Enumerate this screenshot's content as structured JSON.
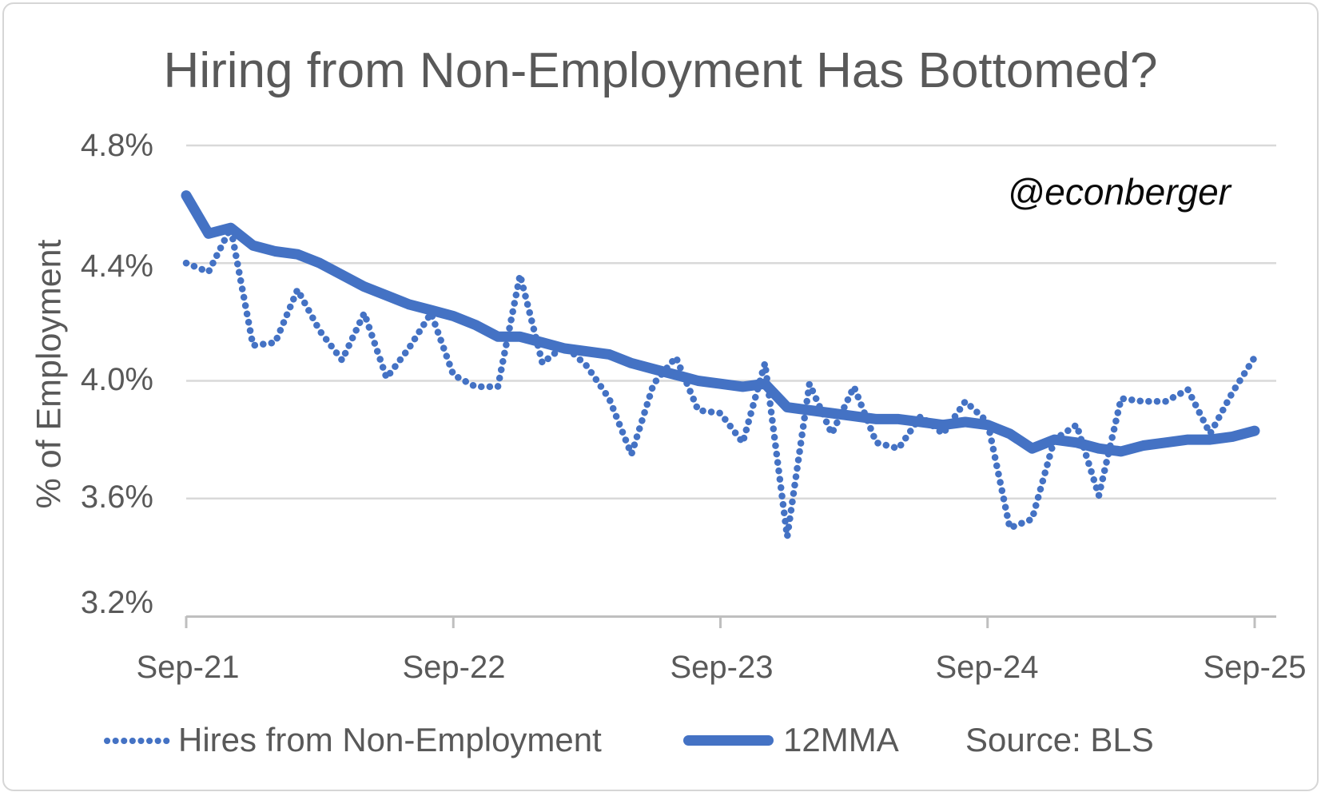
{
  "watermark": "@econberger",
  "source_note": "Source: BLS",
  "chart_data": {
    "type": "line",
    "title": "Hiring from Non-Employment Has Bottomed?",
    "xlabel": "",
    "ylabel": "% of Employment",
    "ylim": [
      3.2,
      4.8
    ],
    "grid": "horizontal",
    "legend_position": "bottom",
    "y_tick_values": [
      4.8,
      4.4,
      4.0,
      3.6,
      3.2
    ],
    "y_tick_labels": [
      "4.8%",
      "4.4%",
      "4.0%",
      "3.6%",
      "3.2%"
    ],
    "x_tick_month_indices": [
      0,
      12,
      24,
      36,
      48
    ],
    "x_tick_labels": [
      "Sep-21",
      "Sep-22",
      "Sep-23",
      "Sep-24",
      "Sep-25"
    ],
    "categories": [
      "Sep-21",
      "Oct-21",
      "Nov-21",
      "Dec-21",
      "Jan-22",
      "Feb-22",
      "Mar-22",
      "Apr-22",
      "May-22",
      "Jun-22",
      "Jul-22",
      "Aug-22",
      "Sep-22",
      "Oct-22",
      "Nov-22",
      "Dec-22",
      "Jan-23",
      "Feb-23",
      "Mar-23",
      "Apr-23",
      "May-23",
      "Jun-23",
      "Jul-23",
      "Aug-23",
      "Sep-23",
      "Oct-23",
      "Nov-23",
      "Dec-23",
      "Jan-24",
      "Feb-24",
      "Mar-24",
      "Apr-24",
      "May-24",
      "Jun-24",
      "Jul-24",
      "Aug-24",
      "Sep-24",
      "Oct-24",
      "Nov-24",
      "Dec-24",
      "Jan-25",
      "Feb-25",
      "Mar-25",
      "Apr-25",
      "May-25",
      "Jun-25",
      "Jul-25",
      "Aug-25",
      "Sep-25"
    ],
    "series": [
      {
        "name": "Hires from Non-Employment",
        "style": "dotted",
        "color": "#4472c4",
        "values": [
          4.4,
          4.37,
          4.52,
          4.12,
          4.13,
          4.31,
          4.17,
          4.07,
          4.23,
          4.01,
          4.11,
          4.23,
          4.02,
          3.98,
          3.98,
          4.36,
          4.06,
          4.12,
          4.05,
          3.94,
          3.75,
          3.99,
          4.08,
          3.9,
          3.89,
          3.79,
          4.06,
          3.47,
          3.99,
          3.82,
          3.98,
          3.79,
          3.77,
          3.88,
          3.82,
          3.93,
          3.86,
          3.5,
          3.53,
          3.8,
          3.85,
          3.61,
          3.94,
          3.93,
          3.93,
          3.97,
          3.82,
          3.96,
          4.08
        ]
      },
      {
        "name": "12MMA",
        "style": "solid",
        "color": "#4472c4",
        "values": [
          4.63,
          4.5,
          4.52,
          4.46,
          4.44,
          4.43,
          4.4,
          4.36,
          4.32,
          4.29,
          4.26,
          4.24,
          4.22,
          4.19,
          4.15,
          4.15,
          4.13,
          4.11,
          4.1,
          4.09,
          4.06,
          4.04,
          4.02,
          4.0,
          3.99,
          3.98,
          3.99,
          3.91,
          3.9,
          3.89,
          3.88,
          3.87,
          3.87,
          3.86,
          3.85,
          3.86,
          3.85,
          3.82,
          3.77,
          3.8,
          3.79,
          3.77,
          3.76,
          3.78,
          3.79,
          3.8,
          3.8,
          3.81,
          3.83
        ]
      }
    ]
  }
}
